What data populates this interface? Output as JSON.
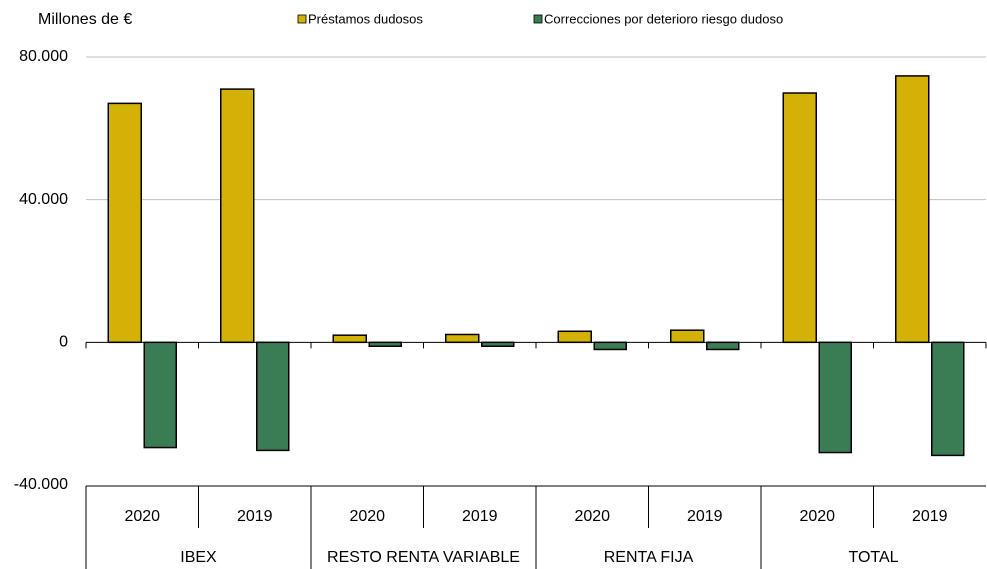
{
  "chart_data": {
    "type": "bar",
    "y_label": "Millones de €",
    "categories": [
      "2020",
      "2019",
      "2020",
      "2019",
      "2020",
      "2019",
      "2020",
      "2019"
    ],
    "groups": [
      "IBEX",
      "RESTO RENTA VARIABLE",
      "RENTA FIJA",
      "TOTAL"
    ],
    "series": [
      {
        "name": "Préstamos dudosos",
        "color": "#d4b106",
        "values": [
          67000,
          71000,
          2000,
          2200,
          3100,
          3400,
          69900,
          74700
        ]
      },
      {
        "name": "Correcciones por deterioro riesgo dudoso",
        "color": "#3a7d55",
        "values": [
          -29500,
          -30300,
          -1100,
          -1100,
          -2000,
          -2000,
          -30900,
          -31700
        ]
      }
    ],
    "ylim": [
      -40000,
      80000
    ],
    "yticks": [
      {
        "value": -40000,
        "label": "-40.000"
      },
      0,
      {
        "value": 40000,
        "label": "40.000"
      },
      {
        "value": 80000,
        "label": "80.000"
      }
    ],
    "grid": true
  }
}
